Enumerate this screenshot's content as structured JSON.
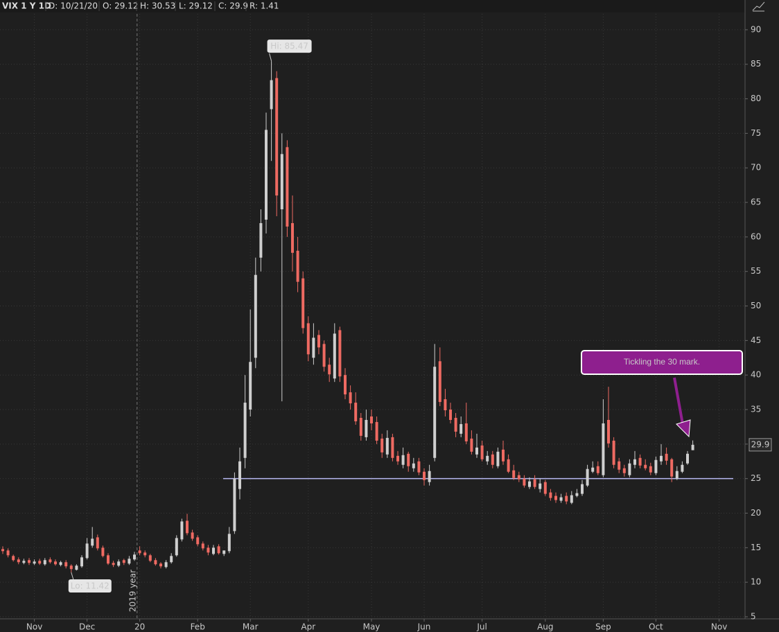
{
  "header": {
    "symbol": "VIX 1 Y 1D",
    "date": "D: 10/21/20",
    "open": "O: 29.12",
    "high": "H: 30.53",
    "low": "L: 29.12",
    "close": "C: 29.9",
    "range": "R: 1.41"
  },
  "chart_data": {
    "type": "candlestick",
    "categories": [
      null,
      null,
      null,
      null,
      null,
      null,
      "Nov",
      null,
      null,
      null,
      null,
      null,
      null,
      null,
      null,
      null,
      "Dec",
      null,
      null,
      null,
      null,
      null,
      null,
      null,
      null,
      null,
      "20",
      null,
      null,
      null,
      null,
      null,
      null,
      null,
      null,
      null,
      null,
      "Feb",
      null,
      null,
      null,
      null,
      null,
      null,
      null,
      null,
      null,
      "Mar",
      null,
      null,
      null,
      null,
      null,
      null,
      null,
      null,
      null,
      null,
      "Apr",
      null,
      null,
      null,
      null,
      null,
      null,
      null,
      null,
      null,
      null,
      null,
      "May",
      null,
      null,
      null,
      null,
      null,
      null,
      null,
      null,
      null,
      "Jun",
      null,
      null,
      null,
      null,
      null,
      null,
      null,
      null,
      null,
      null,
      "Jul",
      null,
      null,
      null,
      null,
      null,
      null,
      null,
      null,
      null,
      null,
      null,
      "Aug",
      null,
      null,
      null,
      null,
      null,
      null,
      null,
      null,
      null,
      null,
      "Sep",
      null,
      null,
      null,
      null,
      null,
      null,
      null,
      null,
      null,
      "Oct",
      null,
      null,
      null,
      null,
      null,
      null,
      null,
      null,
      null,
      null,
      null,
      "Nov"
    ],
    "series": [
      {
        "up_color": "#cfcfcf",
        "down_color": "#ee6a62",
        "open": [
          14.8,
          14.6,
          13.8,
          13.3,
          12.8,
          13.2,
          12.7,
          13.1,
          12.6,
          13.3,
          13.0,
          12.5,
          12.9,
          12.4,
          11.8,
          12.3,
          13.5,
          15.3,
          16.5,
          15.0,
          13.9,
          12.8,
          12.4,
          13.2,
          12.7,
          13.3,
          14.6,
          14.3,
          13.9,
          13.2,
          12.7,
          12.2,
          12.9,
          13.9,
          16.2,
          18.9,
          17.2,
          16.5,
          15.6,
          15.0,
          14.1,
          15.2,
          14.1,
          14.5,
          17.4,
          23.5,
          28.0,
          35.0,
          42.5,
          57.0,
          62.5,
          78.5,
          83.0,
          64.0,
          73.0,
          62.0,
          58.0,
          54.0,
          47.5,
          42.5,
          45.8,
          44.5,
          41.5,
          39.5,
          46.5,
          40.0,
          37.5,
          36.0,
          33.8,
          31.0,
          34.0,
          33.2,
          30.8,
          28.5,
          31.0,
          28.3,
          27.0,
          28.6,
          26.5,
          27.5,
          26.0,
          24.5,
          28.0,
          42.0,
          36.5,
          35.0,
          33.8,
          31.5,
          33.0,
          30.8,
          28.5,
          29.8,
          27.5,
          28.5,
          26.8,
          29.2,
          27.8,
          26.2,
          25.5,
          25.0,
          23.8,
          24.9,
          23.5,
          24.5,
          23.0,
          22.5,
          21.8,
          22.5,
          21.5,
          22.5,
          22.8,
          24.0,
          26.0,
          26.8,
          25.5,
          33.5,
          30.5,
          27.5,
          26.5,
          25.5,
          27.0,
          28.0,
          27.0,
          26.8,
          25.8,
          27.5,
          28.6,
          27.8,
          25.0,
          26.0,
          27.2,
          29.12,
          null,
          null,
          null,
          null,
          null
        ],
        "high": [
          15.2,
          14.9,
          14.0,
          13.6,
          13.4,
          13.5,
          13.3,
          13.4,
          13.5,
          13.6,
          13.3,
          13.1,
          13.2,
          12.6,
          12.6,
          13.9,
          16.4,
          18.0,
          16.9,
          15.3,
          14.2,
          13.1,
          13.3,
          13.4,
          13.8,
          14.4,
          15.2,
          14.6,
          14.1,
          13.5,
          12.9,
          13.2,
          14.2,
          16.8,
          19.2,
          19.9,
          17.6,
          16.8,
          15.9,
          15.4,
          15.4,
          15.5,
          14.6,
          18.0,
          25.9,
          29.5,
          40.0,
          49.5,
          57.0,
          64.0,
          78.0,
          85.47,
          84.0,
          75.0,
          74.0,
          66.0,
          60.0,
          55.0,
          48.5,
          47.5,
          46.5,
          45.0,
          42.5,
          47.5,
          47.0,
          41.0,
          38.5,
          37.5,
          34.5,
          35.0,
          35.0,
          34.0,
          31.5,
          32.0,
          31.5,
          29.0,
          29.5,
          28.9,
          28.0,
          28.0,
          26.5,
          27.0,
          44.5,
          44.0,
          38.0,
          36.0,
          34.5,
          34.0,
          36.0,
          32.0,
          31.5,
          30.5,
          29.0,
          29.0,
          29.5,
          30.5,
          28.5,
          27.0,
          26.0,
          25.5,
          25.2,
          25.5,
          25.0,
          24.8,
          23.5,
          23.0,
          22.8,
          23.0,
          23.2,
          23.5,
          24.8,
          27.0,
          27.5,
          27.5,
          36.5,
          38.3,
          31.0,
          28.0,
          27.0,
          27.8,
          29.0,
          28.5,
          27.8,
          27.3,
          28.2,
          30.0,
          29.5,
          28.0,
          26.8,
          27.5,
          29.0,
          30.53,
          null,
          null,
          null,
          null,
          null
        ],
        "low": [
          14.1,
          13.6,
          13.0,
          12.6,
          12.6,
          12.5,
          12.5,
          12.5,
          12.4,
          12.7,
          12.4,
          12.3,
          12.0,
          11.42,
          11.7,
          12.1,
          13.3,
          15.0,
          14.6,
          13.6,
          12.5,
          12.2,
          12.2,
          12.5,
          12.5,
          13.1,
          13.9,
          13.6,
          12.9,
          12.4,
          12.0,
          12.0,
          12.7,
          13.7,
          15.9,
          16.8,
          16.0,
          15.2,
          14.6,
          13.9,
          13.9,
          14.0,
          13.8,
          14.2,
          17.0,
          22.0,
          26.5,
          34.0,
          41.0,
          55.0,
          60.5,
          71.0,
          63.0,
          36.2,
          60.0,
          55.0,
          52.0,
          46.0,
          42.0,
          41.5,
          43.0,
          40.5,
          39.0,
          39.0,
          39.0,
          36.5,
          35.0,
          32.8,
          30.5,
          30.5,
          32.0,
          30.0,
          28.0,
          28.0,
          27.5,
          27.0,
          26.5,
          26.0,
          26.0,
          25.5,
          24.0,
          24.0,
          27.5,
          35.5,
          34.0,
          33.0,
          31.0,
          31.0,
          30.0,
          28.5,
          28.0,
          27.5,
          27.0,
          26.5,
          26.5,
          27.0,
          25.8,
          24.8,
          24.5,
          23.7,
          23.5,
          23.5,
          23.0,
          22.5,
          21.8,
          21.5,
          21.5,
          21.3,
          21.3,
          22.3,
          22.5,
          23.8,
          25.8,
          25.5,
          25.2,
          29.5,
          26.5,
          25.8,
          25.3,
          25.2,
          26.5,
          26.5,
          26.2,
          25.5,
          25.5,
          27.0,
          27.0,
          24.5,
          24.8,
          25.8,
          27.0,
          29.12,
          null,
          null,
          null,
          null,
          null
        ],
        "close": [
          14.5,
          13.9,
          13.2,
          12.9,
          13.1,
          12.8,
          13.0,
          12.7,
          13.2,
          12.9,
          12.6,
          12.9,
          12.3,
          11.9,
          12.4,
          13.6,
          15.6,
          16.3,
          14.9,
          13.8,
          12.7,
          12.5,
          13.0,
          12.8,
          13.4,
          14.0,
          14.2,
          13.9,
          13.1,
          12.6,
          12.3,
          12.9,
          13.8,
          16.4,
          18.8,
          17.1,
          16.3,
          15.5,
          14.9,
          14.3,
          15.0,
          14.2,
          14.6,
          17.0,
          25.0,
          27.5,
          36.0,
          41.9,
          54.5,
          62.0,
          75.5,
          82.7,
          66.0,
          72.0,
          61.5,
          57.7,
          53.5,
          46.8,
          43.0,
          45.4,
          44.0,
          41.2,
          40.1,
          46.0,
          39.8,
          37.2,
          35.9,
          33.3,
          31.2,
          33.5,
          33.0,
          30.5,
          28.8,
          30.9,
          28.0,
          27.5,
          28.4,
          26.8,
          27.2,
          25.9,
          24.8,
          26.1,
          41.2,
          36.1,
          34.9,
          33.5,
          31.8,
          32.9,
          30.4,
          28.9,
          29.5,
          27.8,
          28.3,
          27.0,
          28.9,
          27.5,
          26.0,
          25.1,
          24.9,
          24.0,
          24.6,
          23.8,
          24.3,
          22.8,
          22.2,
          21.9,
          22.3,
          21.7,
          22.6,
          22.9,
          24.2,
          26.4,
          26.6,
          25.8,
          33.0,
          30.1,
          27.0,
          26.3,
          25.8,
          27.2,
          27.8,
          26.9,
          26.5,
          25.9,
          27.7,
          28.3,
          27.6,
          25.3,
          26.1,
          27.0,
          28.6,
          29.9,
          null,
          null,
          null,
          null,
          null
        ]
      }
    ],
    "ylim": [
      5,
      92.3
    ],
    "yticks": [
      5,
      10,
      15,
      20,
      25,
      30,
      35,
      40,
      45,
      50,
      55,
      60,
      65,
      70,
      75,
      80,
      85,
      90
    ],
    "grid": true,
    "hline": {
      "value": 25,
      "color": "#b8b9f2"
    },
    "year_marker": {
      "label": "2019 year",
      "index": 26
    },
    "high_label": {
      "text": "Hi: 85.47",
      "index": 51
    },
    "low_label": {
      "text": "Lo: 11.42",
      "index": 13
    },
    "annotation": {
      "text": "Tickling the 30 mark.",
      "color": "#8e1f8e"
    }
  }
}
